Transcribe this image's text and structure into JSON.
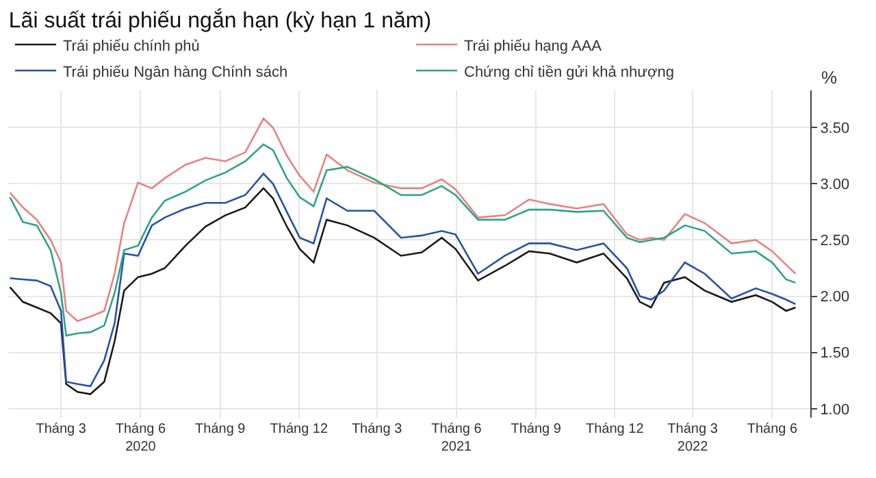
{
  "chart_data": {
    "type": "line",
    "title": "Lãi suất trái phiếu ngắn hạn (kỳ hạn 1 năm)",
    "ylabel": "%",
    "x": [
      "2020-01-02",
      "2020-01-17",
      "2020-02-02",
      "2020-02-18",
      "2020-03-01",
      "2020-03-07",
      "2020-03-20",
      "2020-04-04",
      "2020-04-20",
      "2020-05-02",
      "2020-05-13",
      "2020-05-29",
      "2020-06-14",
      "2020-06-29",
      "2020-07-23",
      "2020-08-15",
      "2020-09-07",
      "2020-09-30",
      "2020-10-21",
      "2020-11-01",
      "2020-11-17",
      "2020-12-02",
      "2020-12-18",
      "2021-01-02",
      "2021-01-26",
      "2021-02-26",
      "2021-03-29",
      "2021-04-22",
      "2021-05-15",
      "2021-05-31",
      "2021-06-26",
      "2021-07-27",
      "2021-08-24",
      "2021-09-17",
      "2021-10-18",
      "2021-11-18",
      "2021-12-15",
      "2021-12-30",
      "2022-01-12",
      "2022-01-27",
      "2022-02-20",
      "2022-03-15",
      "2022-04-15",
      "2022-05-13",
      "2022-06-01",
      "2022-06-17",
      "2022-06-28"
    ],
    "series": [
      {
        "name": "Trái phiếu chính phủ",
        "color": "#1a1a1a",
        "values": [
          2.08,
          1.95,
          1.9,
          1.85,
          1.76,
          1.22,
          1.15,
          1.13,
          1.24,
          1.6,
          2.05,
          2.17,
          2.2,
          2.25,
          2.45,
          2.62,
          2.72,
          2.79,
          2.96,
          2.87,
          2.62,
          2.42,
          2.3,
          2.68,
          2.63,
          2.52,
          2.36,
          2.39,
          2.52,
          2.42,
          2.14,
          2.27,
          2.4,
          2.38,
          2.3,
          2.38,
          2.16,
          1.95,
          1.9,
          2.12,
          2.17,
          2.05,
          1.95,
          2.01,
          1.95,
          1.87,
          1.9
        ]
      },
      {
        "name": "Trái phiếu hạng AAA",
        "color": "#e8827f",
        "values": [
          2.92,
          2.79,
          2.68,
          2.5,
          2.3,
          1.87,
          1.78,
          1.82,
          1.87,
          2.2,
          2.65,
          3.01,
          2.96,
          3.05,
          3.17,
          3.23,
          3.2,
          3.28,
          3.58,
          3.5,
          3.25,
          3.07,
          2.93,
          3.26,
          3.12,
          3.01,
          2.96,
          2.96,
          3.04,
          2.95,
          2.7,
          2.72,
          2.86,
          2.82,
          2.78,
          2.82,
          2.55,
          2.5,
          2.52,
          2.5,
          2.73,
          2.65,
          2.47,
          2.5,
          2.4,
          2.28,
          2.2
        ]
      },
      {
        "name": "Trái phiếu Ngân hàng Chính sách",
        "color": "#2850a8",
        "values": [
          2.16,
          2.15,
          2.14,
          2.09,
          1.87,
          1.24,
          1.22,
          1.2,
          1.43,
          1.76,
          2.38,
          2.36,
          2.63,
          2.7,
          2.78,
          2.83,
          2.83,
          2.9,
          3.09,
          3.0,
          2.75,
          2.52,
          2.47,
          2.87,
          2.76,
          2.76,
          2.52,
          2.54,
          2.58,
          2.55,
          2.2,
          2.36,
          2.47,
          2.47,
          2.41,
          2.47,
          2.25,
          2.0,
          1.97,
          2.05,
          2.3,
          2.2,
          1.98,
          2.07,
          2.02,
          1.97,
          1.93
        ]
      },
      {
        "name": "Chứng chỉ tiền gửi khả nhượng",
        "color": "#2ea385",
        "values": [
          2.88,
          2.66,
          2.63,
          2.41,
          2.03,
          1.65,
          1.67,
          1.68,
          1.74,
          2.03,
          2.41,
          2.45,
          2.7,
          2.85,
          2.93,
          3.03,
          3.1,
          3.2,
          3.35,
          3.3,
          3.05,
          2.88,
          2.8,
          3.12,
          3.15,
          3.04,
          2.9,
          2.9,
          2.98,
          2.9,
          2.68,
          2.68,
          2.77,
          2.77,
          2.75,
          2.76,
          2.52,
          2.48,
          2.5,
          2.52,
          2.63,
          2.58,
          2.38,
          2.4,
          2.3,
          2.15,
          2.12
        ]
      }
    ],
    "xlim": [
      "2019-12-31",
      "2022-07-15"
    ],
    "xticks": [
      {
        "value": "2020-03-01",
        "label": "Tháng 3"
      },
      {
        "value": "2020-06-01",
        "label": "Tháng 6\n2020"
      },
      {
        "value": "2020-09-01",
        "label": "Tháng 9"
      },
      {
        "value": "2020-12-01",
        "label": "Tháng 12"
      },
      {
        "value": "2021-03-01",
        "label": "Tháng 3"
      },
      {
        "value": "2021-06-01",
        "label": "Tháng 6\n2021"
      },
      {
        "value": "2021-09-01",
        "label": "Tháng 9"
      },
      {
        "value": "2021-12-01",
        "label": "Tháng 12"
      },
      {
        "value": "2022-03-01",
        "label": "Tháng 3\n2022"
      },
      {
        "value": "2022-06-01",
        "label": "Tháng 6"
      }
    ],
    "ylim": [
      0.92,
      3.83
    ],
    "yticks": [
      {
        "value": 1,
        "label": "1.00"
      },
      {
        "value": 1.5,
        "label": "1.50"
      },
      {
        "value": 2,
        "label": "2.00"
      },
      {
        "value": 2.5,
        "label": "2.50"
      },
      {
        "value": 3,
        "label": "3.00"
      },
      {
        "value": 3.5,
        "label": "3.50"
      }
    ],
    "grid": true,
    "legend": "top",
    "marker": "none",
    "line_style": "solid"
  }
}
